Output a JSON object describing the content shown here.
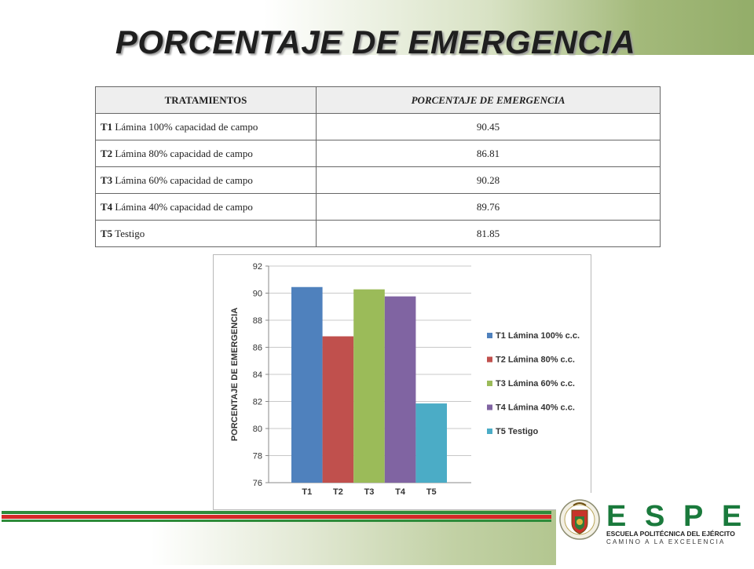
{
  "slide": {
    "title": "PORCENTAJE DE EMERGENCIA"
  },
  "table": {
    "headers": [
      "TRATAMIENTOS",
      "PORCENTAJE DE EMERGENCIA"
    ],
    "rows": [
      {
        "code": "T1",
        "desc": " Lámina 100% capacidad de campo",
        "value": "90.45"
      },
      {
        "code": "T2",
        "desc": " Lámina 80% capacidad de campo",
        "value": "86.81"
      },
      {
        "code": "T3",
        "desc": " Lámina 60% capacidad de campo",
        "value": "90.28"
      },
      {
        "code": "T4",
        "desc": " Lámina 40% capacidad de campo",
        "value": "89.76"
      },
      {
        "code": "T5",
        "desc": " Testigo",
        "value": "81.85"
      }
    ]
  },
  "chart_data": {
    "type": "bar",
    "ylabel": "PORCENTAJE DE EMERGENCIA",
    "xlabel": "",
    "ylim": [
      76,
      92
    ],
    "yticks": [
      76,
      78,
      80,
      82,
      84,
      86,
      88,
      90,
      92
    ],
    "grid": true,
    "legend_position": "right",
    "categories": [
      "T1",
      "T2",
      "T3",
      "T4",
      "T5"
    ],
    "series": [
      {
        "name": "T1 Lámina 100% c.c.",
        "values": [
          90.45,
          null,
          null,
          null,
          null
        ],
        "color": "#4f81bd"
      },
      {
        "name": "T2 Lámina 80% c.c.",
        "values": [
          null,
          86.81,
          null,
          null,
          null
        ],
        "color": "#c0504d"
      },
      {
        "name": "T3 Lámina 60% c.c.",
        "values": [
          null,
          null,
          90.28,
          null,
          null
        ],
        "color": "#9bbb59"
      },
      {
        "name": "T4 Lámina 40% c.c.",
        "values": [
          null,
          null,
          null,
          89.76,
          null
        ],
        "color": "#8064a2"
      },
      {
        "name": "T5 Testigo",
        "values": [
          null,
          null,
          null,
          null,
          81.85
        ],
        "color": "#4bacc6"
      }
    ]
  },
  "footer": {
    "logo": {
      "letters": [
        "E",
        "S",
        "P",
        "E"
      ],
      "name": "ESCUELA POLITÉCNICA DEL EJÉRCITO",
      "motto": "CAMINO A LA EXCELENCIA",
      "color": "#1a7a3c"
    },
    "stripe_colors": [
      "#2e8b3a",
      "#d62828",
      "#2e8b3a"
    ]
  }
}
